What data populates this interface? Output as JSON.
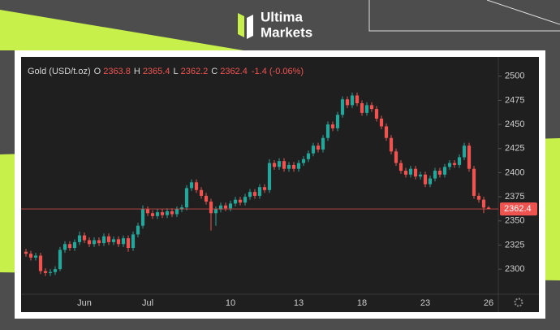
{
  "brand": {
    "line1": "Ultima",
    "line2": "Markets"
  },
  "chart_data": {
    "type": "candlestick",
    "symbol": "Gold (USD/t.oz)",
    "ohlc_letters": [
      "O",
      "H",
      "L",
      "C"
    ],
    "change_label": "-1.4 (-0.06%)",
    "up_color": "#26a69a",
    "down_color": "#ef5350",
    "categories": [
      null,
      null,
      null,
      null,
      null,
      null,
      null,
      null,
      null,
      null,
      null,
      null,
      "Jun",
      null,
      null,
      null,
      null,
      null,
      null,
      null,
      null,
      null,
      null,
      null,
      null,
      "Jul",
      null,
      null,
      null,
      null,
      null,
      null,
      null,
      null,
      null,
      null,
      null,
      null,
      null,
      null,
      null,
      null,
      "10",
      null,
      null,
      null,
      null,
      null,
      null,
      null,
      null,
      null,
      null,
      null,
      null,
      null,
      "13",
      null,
      null,
      null,
      null,
      null,
      null,
      null,
      null,
      null,
      null,
      null,
      null,
      "18",
      null,
      null,
      null,
      null,
      null,
      null,
      null,
      null,
      null,
      null,
      null,
      null,
      "23",
      null,
      null,
      null,
      null,
      null,
      null,
      null,
      null,
      null,
      null,
      null,
      null,
      "26"
    ],
    "open": [
      2318,
      2316,
      2312,
      2314,
      2298,
      2296,
      2297,
      2300,
      2320,
      2326,
      2322,
      2328,
      2335,
      2330,
      2326,
      2330,
      2327,
      2334,
      2328,
      2331,
      2326,
      2332,
      2322,
      2336,
      2345,
      2362,
      2358,
      2355,
      2359,
      2356,
      2360,
      2357,
      2362,
      2364,
      2384,
      2390,
      2382,
      2376,
      2370,
      2358,
      2362,
      2366,
      2363,
      2368,
      2372,
      2369,
      2375,
      2380,
      2376,
      2385,
      2382,
      2410,
      2406,
      2412,
      2404,
      2408,
      2404,
      2410,
      2414,
      2420,
      2428,
      2424,
      2436,
      2450,
      2446,
      2460,
      2476,
      2470,
      2480,
      2472,
      2462,
      2470,
      2466,
      2456,
      2448,
      2436,
      2422,
      2410,
      2402,
      2398,
      2404,
      2396,
      2398,
      2388,
      2394,
      2402,
      2398,
      2406,
      2410,
      2408,
      2416,
      2428,
      2404,
      2376,
      2372,
      2363.8
    ],
    "high": [
      2321,
      2319,
      2317,
      2317,
      2301,
      2300,
      2303,
      2323,
      2329,
      2329,
      2331,
      2339,
      2338,
      2333,
      2333,
      2333,
      2337,
      2337,
      2334,
      2334,
      2335,
      2335,
      2339,
      2348,
      2366,
      2365,
      2361,
      2362,
      2362,
      2363,
      2363,
      2365,
      2367,
      2387,
      2393,
      2393,
      2385,
      2379,
      2373,
      2365,
      2369,
      2369,
      2371,
      2375,
      2375,
      2378,
      2383,
      2383,
      2388,
      2388,
      2414,
      2413,
      2415,
      2415,
      2411,
      2411,
      2413,
      2417,
      2423,
      2431,
      2431,
      2439,
      2453,
      2453,
      2463,
      2479,
      2479,
      2483,
      2483,
      2475,
      2473,
      2473,
      2469,
      2459,
      2451,
      2439,
      2425,
      2413,
      2405,
      2407,
      2407,
      2401,
      2401,
      2397,
      2405,
      2405,
      2409,
      2413,
      2413,
      2419,
      2431,
      2431,
      2407,
      2379,
      2375,
      2365.4
    ],
    "low": [
      2313,
      2309,
      2309,
      2295,
      2293,
      2293,
      2294,
      2298,
      2317,
      2319,
      2319,
      2325,
      2327,
      2323,
      2323,
      2324,
      2324,
      2325,
      2325,
      2323,
      2323,
      2318,
      2319,
      2333,
      2342,
      2355,
      2352,
      2352,
      2353,
      2353,
      2354,
      2354,
      2359,
      2361,
      2381,
      2379,
      2373,
      2367,
      2340,
      2345,
      2359,
      2360,
      2360,
      2365,
      2366,
      2366,
      2372,
      2373,
      2373,
      2379,
      2379,
      2403,
      2403,
      2401,
      2401,
      2401,
      2401,
      2407,
      2411,
      2417,
      2421,
      2421,
      2433,
      2443,
      2443,
      2457,
      2467,
      2467,
      2469,
      2459,
      2459,
      2463,
      2453,
      2445,
      2433,
      2419,
      2407,
      2399,
      2395,
      2395,
      2393,
      2393,
      2385,
      2385,
      2391,
      2395,
      2395,
      2403,
      2405,
      2405,
      2413,
      2401,
      2373,
      2369,
      2358,
      2362.2
    ],
    "close": [
      2316,
      2312,
      2314,
      2298,
      2296,
      2297,
      2300,
      2320,
      2326,
      2322,
      2328,
      2335,
      2330,
      2326,
      2330,
      2327,
      2334,
      2328,
      2331,
      2326,
      2332,
      2322,
      2336,
      2345,
      2362,
      2358,
      2355,
      2359,
      2356,
      2360,
      2357,
      2362,
      2364,
      2384,
      2390,
      2382,
      2376,
      2370,
      2358,
      2362,
      2366,
      2363,
      2368,
      2372,
      2369,
      2375,
      2380,
      2376,
      2385,
      2382,
      2410,
      2406,
      2412,
      2404,
      2408,
      2404,
      2410,
      2414,
      2420,
      2428,
      2424,
      2436,
      2450,
      2446,
      2460,
      2476,
      2470,
      2480,
      2472,
      2462,
      2470,
      2466,
      2456,
      2448,
      2436,
      2422,
      2410,
      2402,
      2398,
      2404,
      2396,
      2398,
      2388,
      2394,
      2402,
      2398,
      2406,
      2410,
      2408,
      2416,
      2428,
      2404,
      2376,
      2372,
      2363.8,
      2362.4
    ],
    "ylim": [
      2274,
      2520
    ],
    "yticks": [
      2300,
      2325,
      2350,
      2375,
      2400,
      2425,
      2450,
      2475,
      2500
    ]
  }
}
